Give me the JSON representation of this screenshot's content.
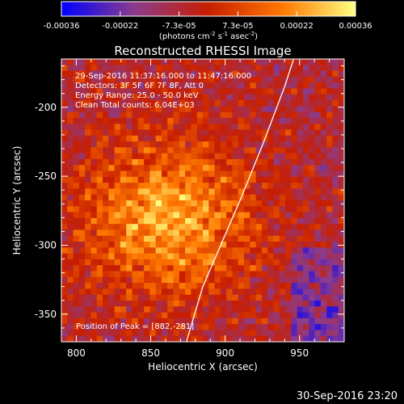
{
  "chart_data": {
    "type": "heatmap",
    "title": "Reconstructed RHESSI Image",
    "xlabel": "Heliocentric X (arcsec)",
    "ylabel": "Heliocentric Y (arcsec)",
    "xlim": [
      790,
      980
    ],
    "ylim": [
      -370,
      -165
    ],
    "x_ticks": [
      800,
      850,
      900,
      950
    ],
    "y_ticks": [
      -200,
      -250,
      -300,
      -350
    ],
    "colorbar": {
      "range": [
        -0.00036,
        0.00036
      ],
      "ticks": [
        "-0.00036",
        "-0.00022",
        "-7.3e-05",
        "7.3e-05",
        "0.00022",
        "0.00036"
      ],
      "units_text": "(photons cm",
      "units_sup1": "-2",
      "units_mid1": " s",
      "units_sup2": "-1",
      "units_mid2": " asec",
      "units_sup3": "-2",
      "units_end": ")",
      "colors": [
        "#0000ff",
        "#8c3c8c",
        "#c81e00",
        "#ff7800",
        "#ffff80"
      ]
    },
    "annotations": [
      "29-Sep-2016 11:37:16.000 to 11:47:16.000",
      "Detectors: 3F 5F 6F 7F 8F, Att 0",
      "Energy Range: 25.0 - 50.0 keV",
      "Clean     Total counts: 6.04E+03"
    ],
    "peak_text": "Position of Peak = [882,-281]",
    "peak": {
      "x": 882,
      "y": -281
    },
    "limb": [
      {
        "x": 874,
        "y": -370
      },
      {
        "x": 885,
        "y": -330
      },
      {
        "x": 897,
        "y": -300
      },
      {
        "x": 911,
        "y": -265
      },
      {
        "x": 926,
        "y": -225
      },
      {
        "x": 940,
        "y": -185
      },
      {
        "x": 946,
        "y": -165
      }
    ]
  },
  "footer": {
    "timestamp": "30-Sep-2016 23:20"
  }
}
